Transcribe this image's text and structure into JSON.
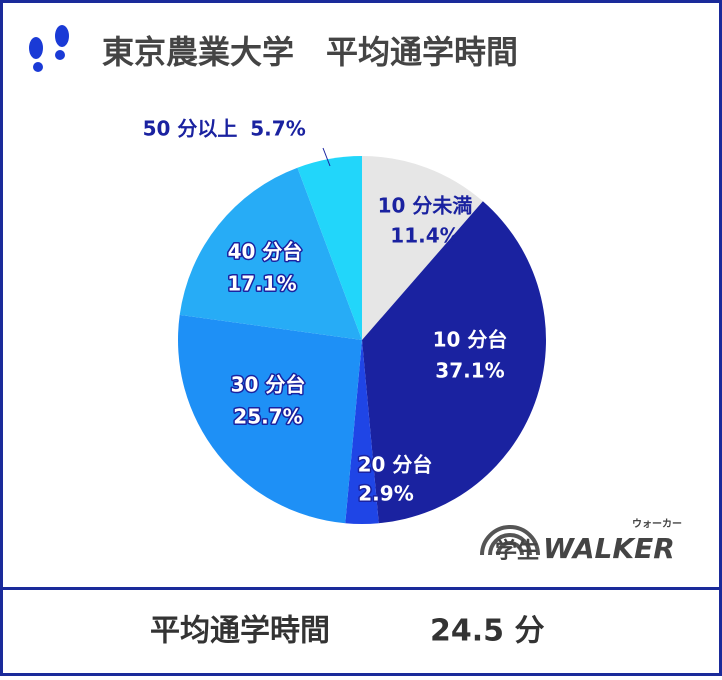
{
  "chart_data": {
    "type": "pie",
    "title": "東京農業大学　平均通学時間",
    "categories": [
      "10 分未満",
      "10 分台",
      "20 分台",
      "30 分台",
      "40 分台",
      "50 分以上"
    ],
    "values": [
      11.4,
      37.1,
      2.9,
      25.7,
      17.1,
      5.7
    ],
    "value_labels": [
      "11.4%",
      "37.1%",
      "2.9%",
      "25.7%",
      "17.1%",
      "5.7%"
    ],
    "colors": [
      "#e6e6e6",
      "#1a22a0",
      "#1f45e6",
      "#1e90f6",
      "#27acf6",
      "#22d6fa"
    ],
    "footer": {
      "label": "平均通学時間",
      "value": "24.5 分"
    },
    "logo": {
      "main": "学生",
      "brand": "WALKER",
      "kana": "ウォーカー"
    }
  }
}
